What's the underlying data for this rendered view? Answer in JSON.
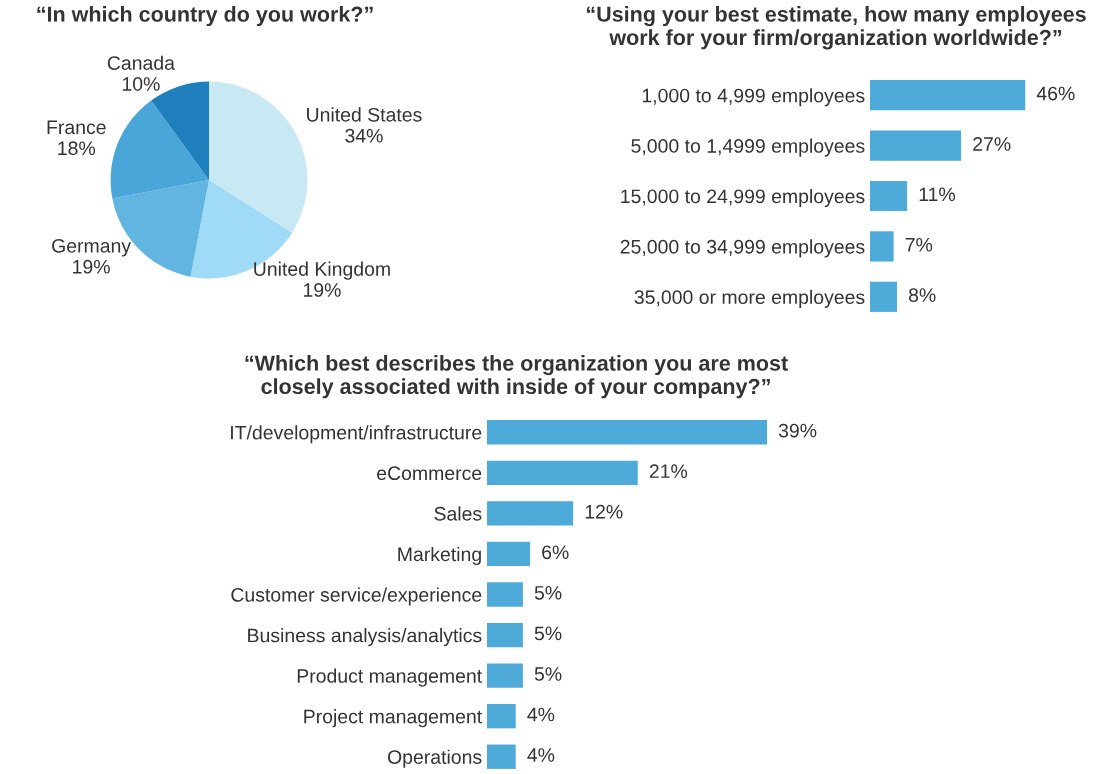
{
  "chart_data": [
    {
      "type": "pie",
      "title": "“In which country do you work?”",
      "categories": [
        "United States",
        "United Kingdom",
        "Germany",
        "France",
        "Canada"
      ],
      "values": [
        34,
        19,
        19,
        18,
        10
      ],
      "value_labels": [
        "34%",
        "19%",
        "19%",
        "18%",
        "10%"
      ],
      "colors": [
        "#c8e8f4",
        "#9fdbf6",
        "#63b5e1",
        "#4aa6d9",
        "#1f7fbc"
      ],
      "legend": false
    },
    {
      "type": "bar",
      "orientation": "horizontal",
      "title": "“Using your best estimate, how many employees\nwork for your firm/organization worldwide?”",
      "categories": [
        "1,000 to 4,999 employees",
        "5,000 to 1,4999 employees",
        "15,000 to 24,999 employees",
        "25,000 to 34,999 employees",
        "35,000 or more employees"
      ],
      "values": [
        46,
        27,
        11,
        7,
        8
      ],
      "value_labels": [
        "46%",
        "27%",
        "11%",
        "7%",
        "8%"
      ],
      "color": "#4eaad8",
      "tick_labels": "y",
      "grid": false
    },
    {
      "type": "bar",
      "orientation": "horizontal",
      "title": "“Which best describes the organization you are most\nclosely associated with inside of your company?”",
      "categories": [
        "IT/development/infrastructure",
        "eCommerce",
        "Sales",
        "Marketing",
        "Customer service/experience",
        "Business analysis/analytics",
        "Product management",
        "Project management",
        "Operations"
      ],
      "values": [
        39,
        21,
        12,
        6,
        5,
        5,
        5,
        4,
        4
      ],
      "value_labels": [
        "39%",
        "21%",
        "12%",
        "6%",
        "5%",
        "5%",
        "5%",
        "4%",
        "4%"
      ],
      "color": "#4eaad8",
      "tick_labels": "y",
      "grid": false
    }
  ]
}
